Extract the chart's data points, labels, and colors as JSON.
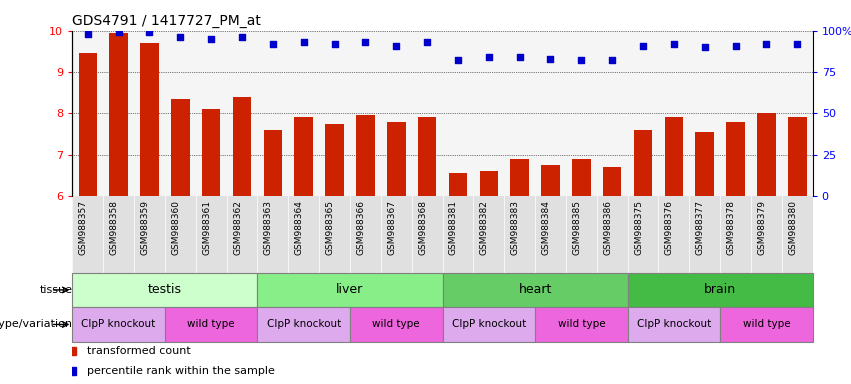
{
  "title": "GDS4791 / 1417727_PM_at",
  "samples": [
    "GSM988357",
    "GSM988358",
    "GSM988359",
    "GSM988360",
    "GSM988361",
    "GSM988362",
    "GSM988363",
    "GSM988364",
    "GSM988365",
    "GSM988366",
    "GSM988367",
    "GSM988368",
    "GSM988381",
    "GSM988382",
    "GSM988383",
    "GSM988384",
    "GSM988385",
    "GSM988386",
    "GSM988375",
    "GSM988376",
    "GSM988377",
    "GSM988378",
    "GSM988379",
    "GSM988380"
  ],
  "bar_values": [
    9.45,
    9.95,
    9.7,
    8.35,
    8.1,
    8.4,
    7.6,
    7.9,
    7.75,
    7.95,
    7.8,
    7.9,
    6.55,
    6.6,
    6.9,
    6.75,
    6.9,
    6.7,
    7.6,
    7.9,
    7.55,
    7.8,
    8.0,
    7.9
  ],
  "percentile_values": [
    98,
    99,
    99,
    96,
    95,
    96,
    92,
    93,
    92,
    93,
    91,
    93,
    82,
    84,
    84,
    83,
    82,
    82,
    91,
    92,
    90,
    91,
    92,
    92
  ],
  "ylim_left": [
    6,
    10
  ],
  "ylim_right": [
    0,
    100
  ],
  "yticks_left": [
    6,
    7,
    8,
    9,
    10
  ],
  "yticks_right": [
    0,
    25,
    50,
    75,
    100
  ],
  "bar_color": "#cc2200",
  "dot_color": "#0000cc",
  "plot_bg": "#f5f5f5",
  "xtick_bg": "#e0e0e0",
  "tissues": [
    {
      "label": "testis",
      "start": 0,
      "end": 6,
      "color": "#ccffcc"
    },
    {
      "label": "liver",
      "start": 6,
      "end": 12,
      "color": "#88ee88"
    },
    {
      "label": "heart",
      "start": 12,
      "end": 18,
      "color": "#66cc66"
    },
    {
      "label": "brain",
      "start": 18,
      "end": 24,
      "color": "#44bb44"
    }
  ],
  "genotypes": [
    {
      "label": "ClpP knockout",
      "start": 0,
      "end": 3,
      "color": "#ddaaee"
    },
    {
      "label": "wild type",
      "start": 3,
      "end": 6,
      "color": "#ee66dd"
    },
    {
      "label": "ClpP knockout",
      "start": 6,
      "end": 9,
      "color": "#ddaaee"
    },
    {
      "label": "wild type",
      "start": 9,
      "end": 12,
      "color": "#ee66dd"
    },
    {
      "label": "ClpP knockout",
      "start": 12,
      "end": 15,
      "color": "#ddaaee"
    },
    {
      "label": "wild type",
      "start": 15,
      "end": 18,
      "color": "#ee66dd"
    },
    {
      "label": "ClpP knockout",
      "start": 18,
      "end": 21,
      "color": "#ddaaee"
    },
    {
      "label": "wild type",
      "start": 21,
      "end": 24,
      "color": "#ee66dd"
    }
  ],
  "legend_bar_label": "transformed count",
  "legend_dot_label": "percentile rank within the sample",
  "tissue_label": "tissue",
  "genotype_label": "genotype/variation"
}
